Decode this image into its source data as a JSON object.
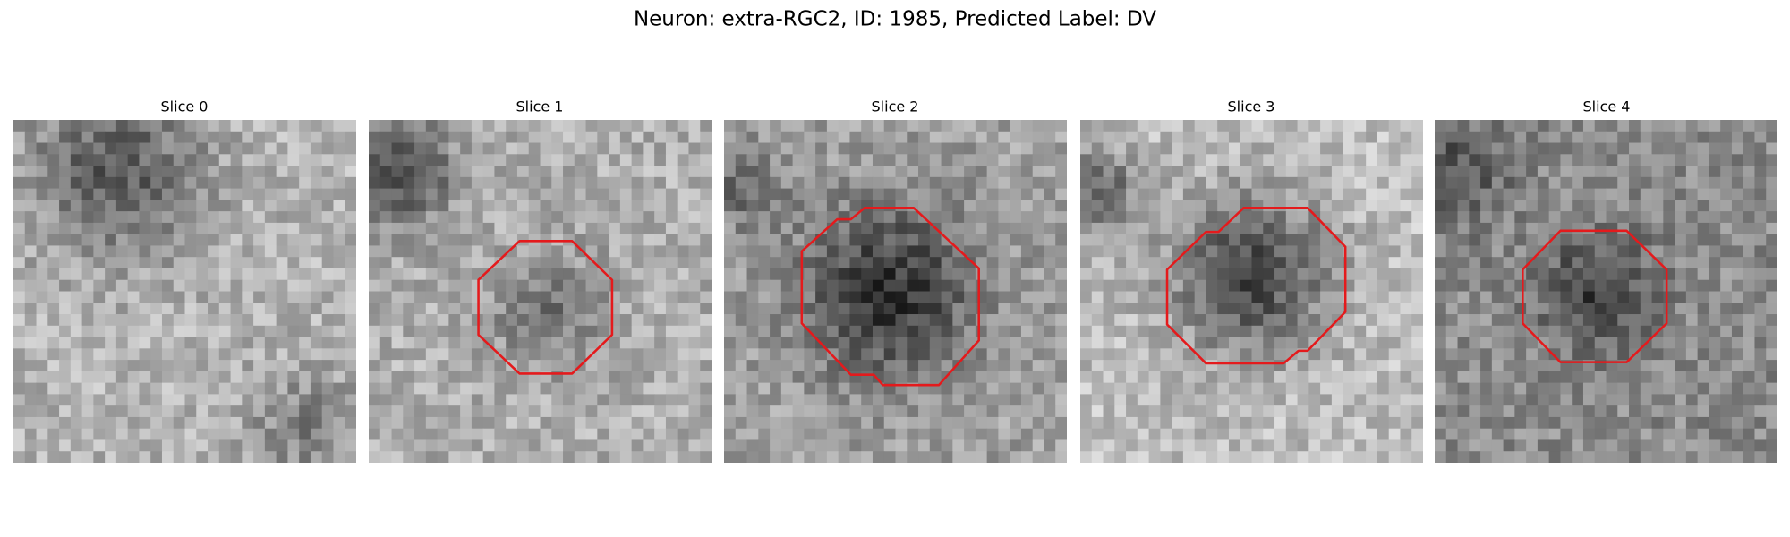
{
  "title": "Neuron: extra-RGC2, ID: 1985, Predicted Label: DV",
  "panels": [
    {
      "title": "Slice 0"
    },
    {
      "title": "Slice 1"
    },
    {
      "title": "Slice 2"
    },
    {
      "title": "Slice 3"
    },
    {
      "title": "Slice 4"
    }
  ]
}
